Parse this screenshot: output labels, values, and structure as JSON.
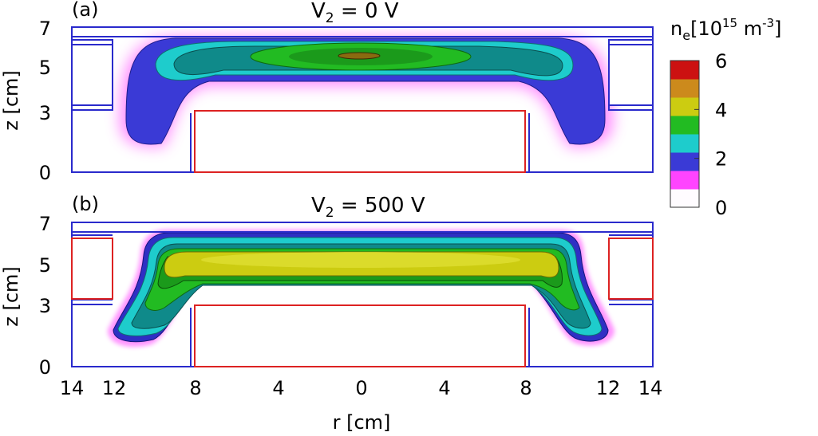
{
  "chart_data": {
    "type": "heatmap",
    "quantity_label": "n",
    "quantity_sub": "e",
    "unit_open": "[10",
    "unit_exp": "15",
    "unit_mid": " m",
    "unit_exp2": "-3",
    "unit_close": "]",
    "colorbar_ticks": [
      "0",
      "2",
      "4",
      "6"
    ],
    "colorbar_range": [
      0,
      6
    ],
    "colorbar_levels": 8,
    "colorbar_colors": [
      "#fffcff",
      "#ff44ff",
      "#3a3ad6",
      "#1ecccc",
      "#22bb22",
      "#cccc11",
      "#cc8a1c",
      "#cc1111"
    ],
    "xlabel": "r [cm]",
    "ylabel": "z [cm]",
    "x_ticks": [
      "14",
      "12",
      "8",
      "4",
      "0",
      "4",
      "8",
      "12",
      "14"
    ],
    "y_ticks": [
      "0",
      "3",
      "5",
      "7"
    ],
    "panels": [
      {
        "tag": "(a)",
        "title_var": "V",
        "title_sub": "2",
        "title_rest": " = 0 V",
        "peak_density": 6.0,
        "outer_electrode_color": "#2a2acc"
      },
      {
        "tag": "(b)",
        "title_var": "V",
        "title_sub": "2",
        "title_rest": " = 500 V",
        "peak_density": 4.5,
        "outer_electrode_color": "#dd2222"
      }
    ],
    "inner_electrode_color": "#dd2222",
    "wall_color": "#2a2acc"
  }
}
